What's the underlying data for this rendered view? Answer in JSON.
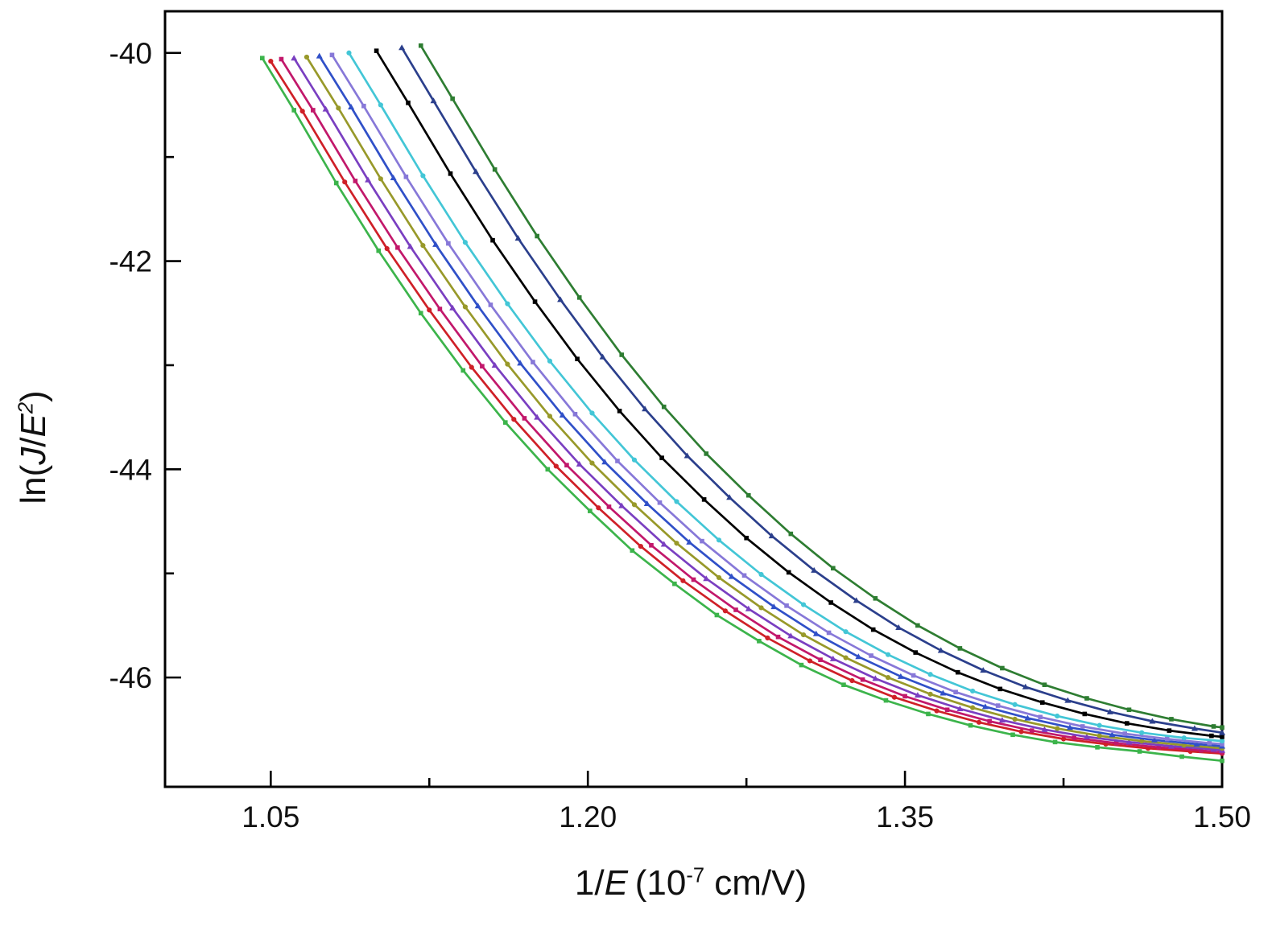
{
  "chart_data": {
    "type": "line",
    "title": "",
    "xlabel_parts": {
      "pre": "1/",
      "e": "E",
      "mid": " (10",
      "sup": "-7",
      "post": " cm/V)"
    },
    "ylabel_parts": {
      "pre": "ln(",
      "j": "J",
      "slash": "/",
      "e": "E",
      "sup": "2",
      "post": ")"
    },
    "xlim": [
      1.0,
      1.5
    ],
    "ylim": [
      -47.05,
      -39.6
    ],
    "x_ticks": [
      1.05,
      1.2,
      1.35,
      1.5
    ],
    "x_tick_labels": [
      "1.05",
      "1.20",
      "1.35",
      "1.50"
    ],
    "x_minor_ticks": [
      1.125,
      1.275,
      1.425
    ],
    "y_ticks": [
      -40,
      -42,
      -44,
      -46
    ],
    "y_tick_labels": [
      "-40",
      "-42",
      "-44",
      "-46"
    ],
    "y_minor_ticks": [
      -41,
      -43,
      -45
    ],
    "grid": false,
    "legend": "none",
    "axis_color": "#000000",
    "series": [
      {
        "name": "curve-green",
        "color": "#3cb44b",
        "marker": "square",
        "points": [
          [
            1.046,
            -40.05
          ],
          [
            1.061,
            -40.55
          ],
          [
            1.081,
            -41.25
          ],
          [
            1.101,
            -41.9
          ],
          [
            1.121,
            -42.5
          ],
          [
            1.141,
            -43.05
          ],
          [
            1.161,
            -43.55
          ],
          [
            1.181,
            -44.0
          ],
          [
            1.201,
            -44.4
          ],
          [
            1.221,
            -44.78
          ],
          [
            1.241,
            -45.1
          ],
          [
            1.261,
            -45.4
          ],
          [
            1.281,
            -45.65
          ],
          [
            1.301,
            -45.88
          ],
          [
            1.321,
            -46.07
          ],
          [
            1.341,
            -46.22
          ],
          [
            1.361,
            -46.35
          ],
          [
            1.381,
            -46.46
          ],
          [
            1.401,
            -46.55
          ],
          [
            1.421,
            -46.62
          ],
          [
            1.441,
            -46.67
          ],
          [
            1.461,
            -46.71
          ],
          [
            1.481,
            -46.76
          ],
          [
            1.5,
            -46.8
          ]
        ]
      },
      {
        "name": "curve-red",
        "color": "#cf2027",
        "marker": "circle",
        "points": [
          [
            1.05,
            -40.08
          ],
          [
            1.065,
            -40.56
          ],
          [
            1.085,
            -41.24
          ],
          [
            1.105,
            -41.88
          ],
          [
            1.125,
            -42.47
          ],
          [
            1.145,
            -43.02
          ],
          [
            1.165,
            -43.52
          ],
          [
            1.185,
            -43.97
          ],
          [
            1.205,
            -44.37
          ],
          [
            1.225,
            -44.74
          ],
          [
            1.245,
            -45.07
          ],
          [
            1.265,
            -45.36
          ],
          [
            1.285,
            -45.62
          ],
          [
            1.305,
            -45.84
          ],
          [
            1.325,
            -46.03
          ],
          [
            1.345,
            -46.19
          ],
          [
            1.365,
            -46.32
          ],
          [
            1.385,
            -46.43
          ],
          [
            1.405,
            -46.52
          ],
          [
            1.425,
            -46.59
          ],
          [
            1.445,
            -46.64
          ],
          [
            1.465,
            -46.68
          ],
          [
            1.485,
            -46.71
          ],
          [
            1.5,
            -46.73
          ]
        ]
      },
      {
        "name": "curve-magenta",
        "color": "#c2186b",
        "marker": "square",
        "points": [
          [
            1.055,
            -40.06
          ],
          [
            1.07,
            -40.55
          ],
          [
            1.09,
            -41.23
          ],
          [
            1.11,
            -41.87
          ],
          [
            1.13,
            -42.46
          ],
          [
            1.15,
            -43.01
          ],
          [
            1.17,
            -43.51
          ],
          [
            1.19,
            -43.96
          ],
          [
            1.21,
            -44.36
          ],
          [
            1.23,
            -44.73
          ],
          [
            1.25,
            -45.06
          ],
          [
            1.27,
            -45.35
          ],
          [
            1.29,
            -45.61
          ],
          [
            1.31,
            -45.83
          ],
          [
            1.33,
            -46.02
          ],
          [
            1.35,
            -46.18
          ],
          [
            1.37,
            -46.31
          ],
          [
            1.39,
            -46.42
          ],
          [
            1.41,
            -46.51
          ],
          [
            1.43,
            -46.58
          ],
          [
            1.45,
            -46.63
          ],
          [
            1.47,
            -46.67
          ],
          [
            1.49,
            -46.7
          ],
          [
            1.5,
            -46.72
          ]
        ]
      },
      {
        "name": "curve-purple",
        "color": "#7a3fc1",
        "marker": "triangle",
        "points": [
          [
            1.061,
            -40.05
          ],
          [
            1.076,
            -40.54
          ],
          [
            1.096,
            -41.22
          ],
          [
            1.116,
            -41.86
          ],
          [
            1.136,
            -42.45
          ],
          [
            1.156,
            -43.0
          ],
          [
            1.176,
            -43.5
          ],
          [
            1.196,
            -43.95
          ],
          [
            1.216,
            -44.35
          ],
          [
            1.236,
            -44.72
          ],
          [
            1.256,
            -45.05
          ],
          [
            1.276,
            -45.34
          ],
          [
            1.296,
            -45.6
          ],
          [
            1.316,
            -45.82
          ],
          [
            1.336,
            -46.01
          ],
          [
            1.356,
            -46.17
          ],
          [
            1.376,
            -46.3
          ],
          [
            1.396,
            -46.41
          ],
          [
            1.416,
            -46.5
          ],
          [
            1.436,
            -46.57
          ],
          [
            1.456,
            -46.62
          ],
          [
            1.476,
            -46.66
          ],
          [
            1.496,
            -46.69
          ],
          [
            1.5,
            -46.7
          ]
        ]
      },
      {
        "name": "curve-olive",
        "color": "#98992a",
        "marker": "circle",
        "points": [
          [
            1.067,
            -40.04
          ],
          [
            1.082,
            -40.53
          ],
          [
            1.102,
            -41.21
          ],
          [
            1.122,
            -41.85
          ],
          [
            1.142,
            -42.44
          ],
          [
            1.162,
            -42.99
          ],
          [
            1.182,
            -43.49
          ],
          [
            1.202,
            -43.94
          ],
          [
            1.222,
            -44.34
          ],
          [
            1.242,
            -44.71
          ],
          [
            1.262,
            -45.04
          ],
          [
            1.282,
            -45.33
          ],
          [
            1.302,
            -45.59
          ],
          [
            1.322,
            -45.81
          ],
          [
            1.342,
            -46.0
          ],
          [
            1.362,
            -46.16
          ],
          [
            1.382,
            -46.29
          ],
          [
            1.402,
            -46.4
          ],
          [
            1.422,
            -46.49
          ],
          [
            1.442,
            -46.56
          ],
          [
            1.462,
            -46.61
          ],
          [
            1.482,
            -46.65
          ],
          [
            1.5,
            -46.68
          ]
        ]
      },
      {
        "name": "curve-blue",
        "color": "#3050c8",
        "marker": "triangle",
        "points": [
          [
            1.073,
            -40.03
          ],
          [
            1.088,
            -40.52
          ],
          [
            1.108,
            -41.2
          ],
          [
            1.128,
            -41.84
          ],
          [
            1.148,
            -42.43
          ],
          [
            1.168,
            -42.98
          ],
          [
            1.188,
            -43.48
          ],
          [
            1.208,
            -43.93
          ],
          [
            1.228,
            -44.33
          ],
          [
            1.248,
            -44.7
          ],
          [
            1.268,
            -45.03
          ],
          [
            1.288,
            -45.32
          ],
          [
            1.308,
            -45.58
          ],
          [
            1.328,
            -45.8
          ],
          [
            1.348,
            -45.99
          ],
          [
            1.368,
            -46.15
          ],
          [
            1.388,
            -46.28
          ],
          [
            1.408,
            -46.39
          ],
          [
            1.428,
            -46.48
          ],
          [
            1.448,
            -46.55
          ],
          [
            1.468,
            -46.6
          ],
          [
            1.488,
            -46.64
          ],
          [
            1.5,
            -46.66
          ]
        ]
      },
      {
        "name": "curve-violet",
        "color": "#8778d8",
        "marker": "square",
        "points": [
          [
            1.079,
            -40.02
          ],
          [
            1.094,
            -40.51
          ],
          [
            1.114,
            -41.19
          ],
          [
            1.134,
            -41.83
          ],
          [
            1.154,
            -42.42
          ],
          [
            1.174,
            -42.97
          ],
          [
            1.194,
            -43.47
          ],
          [
            1.214,
            -43.92
          ],
          [
            1.234,
            -44.32
          ],
          [
            1.254,
            -44.69
          ],
          [
            1.274,
            -45.02
          ],
          [
            1.294,
            -45.31
          ],
          [
            1.314,
            -45.57
          ],
          [
            1.334,
            -45.79
          ],
          [
            1.354,
            -45.98
          ],
          [
            1.374,
            -46.14
          ],
          [
            1.394,
            -46.27
          ],
          [
            1.414,
            -46.38
          ],
          [
            1.434,
            -46.47
          ],
          [
            1.454,
            -46.54
          ],
          [
            1.474,
            -46.59
          ],
          [
            1.494,
            -46.63
          ],
          [
            1.5,
            -46.64
          ]
        ]
      },
      {
        "name": "curve-cyan",
        "color": "#43c6d6",
        "marker": "circle",
        "points": [
          [
            1.087,
            -40.0
          ],
          [
            1.102,
            -40.5
          ],
          [
            1.122,
            -41.18
          ],
          [
            1.142,
            -41.82
          ],
          [
            1.162,
            -42.41
          ],
          [
            1.182,
            -42.96
          ],
          [
            1.202,
            -43.46
          ],
          [
            1.222,
            -43.91
          ],
          [
            1.242,
            -44.31
          ],
          [
            1.262,
            -44.68
          ],
          [
            1.282,
            -45.01
          ],
          [
            1.302,
            -45.3
          ],
          [
            1.322,
            -45.56
          ],
          [
            1.342,
            -45.78
          ],
          [
            1.362,
            -45.97
          ],
          [
            1.382,
            -46.13
          ],
          [
            1.402,
            -46.26
          ],
          [
            1.422,
            -46.37
          ],
          [
            1.442,
            -46.46
          ],
          [
            1.462,
            -46.53
          ],
          [
            1.482,
            -46.58
          ],
          [
            1.5,
            -46.61
          ]
        ]
      },
      {
        "name": "curve-black",
        "color": "#000000",
        "marker": "square",
        "points": [
          [
            1.1,
            -39.98
          ],
          [
            1.115,
            -40.48
          ],
          [
            1.135,
            -41.16
          ],
          [
            1.155,
            -41.8
          ],
          [
            1.175,
            -42.39
          ],
          [
            1.195,
            -42.94
          ],
          [
            1.215,
            -43.44
          ],
          [
            1.235,
            -43.89
          ],
          [
            1.255,
            -44.29
          ],
          [
            1.275,
            -44.66
          ],
          [
            1.295,
            -44.99
          ],
          [
            1.315,
            -45.28
          ],
          [
            1.335,
            -45.54
          ],
          [
            1.355,
            -45.76
          ],
          [
            1.375,
            -45.95
          ],
          [
            1.395,
            -46.11
          ],
          [
            1.415,
            -46.24
          ],
          [
            1.435,
            -46.35
          ],
          [
            1.455,
            -46.44
          ],
          [
            1.475,
            -46.51
          ],
          [
            1.495,
            -46.56
          ],
          [
            1.5,
            -46.57
          ]
        ]
      },
      {
        "name": "curve-navy",
        "color": "#2b3f8c",
        "marker": "triangle",
        "points": [
          [
            1.112,
            -39.95
          ],
          [
            1.127,
            -40.46
          ],
          [
            1.147,
            -41.14
          ],
          [
            1.167,
            -41.78
          ],
          [
            1.187,
            -42.37
          ],
          [
            1.207,
            -42.92
          ],
          [
            1.227,
            -43.42
          ],
          [
            1.247,
            -43.87
          ],
          [
            1.267,
            -44.27
          ],
          [
            1.287,
            -44.64
          ],
          [
            1.307,
            -44.97
          ],
          [
            1.327,
            -45.26
          ],
          [
            1.347,
            -45.52
          ],
          [
            1.367,
            -45.74
          ],
          [
            1.387,
            -45.93
          ],
          [
            1.407,
            -46.09
          ],
          [
            1.427,
            -46.22
          ],
          [
            1.447,
            -46.33
          ],
          [
            1.467,
            -46.42
          ],
          [
            1.487,
            -46.49
          ],
          [
            1.5,
            -46.53
          ]
        ]
      },
      {
        "name": "curve-dark-green",
        "color": "#2e7d32",
        "marker": "square",
        "points": [
          [
            1.121,
            -39.93
          ],
          [
            1.136,
            -40.44
          ],
          [
            1.156,
            -41.12
          ],
          [
            1.176,
            -41.76
          ],
          [
            1.196,
            -42.35
          ],
          [
            1.216,
            -42.9
          ],
          [
            1.236,
            -43.4
          ],
          [
            1.256,
            -43.85
          ],
          [
            1.276,
            -44.25
          ],
          [
            1.296,
            -44.62
          ],
          [
            1.316,
            -44.95
          ],
          [
            1.336,
            -45.24
          ],
          [
            1.356,
            -45.5
          ],
          [
            1.376,
            -45.72
          ],
          [
            1.396,
            -45.91
          ],
          [
            1.416,
            -46.07
          ],
          [
            1.436,
            -46.2
          ],
          [
            1.456,
            -46.31
          ],
          [
            1.476,
            -46.4
          ],
          [
            1.496,
            -46.47
          ],
          [
            1.5,
            -46.48
          ]
        ]
      }
    ]
  }
}
